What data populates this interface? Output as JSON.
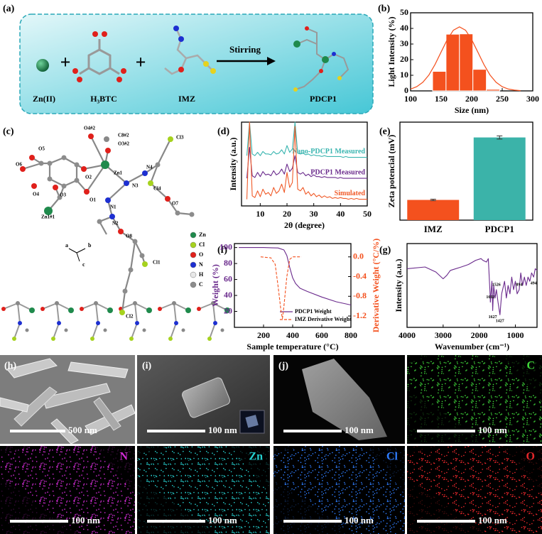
{
  "panel_labels": [
    "(a)",
    "(b)",
    "(c)",
    "(d)",
    "(e)",
    "(f)",
    "(g)",
    "(h)",
    "(i)",
    "(j)"
  ],
  "scheme": {
    "reactants": [
      "Zn(II)",
      "H₃BTC",
      "IMZ"
    ],
    "plus": [
      "+",
      "+"
    ],
    "arrow_label": "Stirring",
    "product": "PDCP1"
  },
  "structure": {
    "atom_labels": [
      "O5",
      "O6",
      "O4",
      "O3",
      "Zn1#1",
      "O2",
      "O1",
      "Zn1",
      "N1",
      "N2",
      "N3",
      "N4",
      "O4#2",
      "C8#2",
      "O3#2",
      "Cl3",
      "Cl4",
      "O7",
      "O8",
      "Cl1",
      "Cl2"
    ],
    "axes": [
      "a",
      "b",
      "c"
    ],
    "legend": [
      {
        "name": "Zn",
        "color": "#1f8a4c"
      },
      {
        "name": "Cl",
        "color": "#a6d21e"
      },
      {
        "name": "O",
        "color": "#e0201b"
      },
      {
        "name": "N",
        "color": "#1d2fd1"
      },
      {
        "name": "H",
        "color": "#e8e8e8"
      },
      {
        "name": "C",
        "color": "#8c8c8c"
      }
    ]
  },
  "micrographs": {
    "scale_bars": [
      "500 nm",
      "100 nm",
      "100 nm",
      "100 nm",
      "100 nm",
      "100 nm",
      "100 nm",
      "100 nm"
    ],
    "element_maps": [
      {
        "name": "C",
        "color": "#3fd83a"
      },
      {
        "name": "N",
        "color": "#d22bd6"
      },
      {
        "name": "Zn",
        "color": "#25d0d0"
      },
      {
        "name": "Cl",
        "color": "#2f7dff"
      },
      {
        "name": "O",
        "color": "#e3262a"
      }
    ]
  },
  "chart_data": [
    {
      "type": "histogram",
      "xlabel": "Size (nm)",
      "ylabel": "Light Intensity (%)",
      "bins": [
        136,
        158,
        180,
        202,
        224,
        246
      ],
      "values": [
        12.5,
        36.3,
        36.5,
        13.8,
        1.0
      ],
      "color": "#f4511e",
      "fit": {
        "x": [
          100,
          110,
          120,
          130,
          140,
          150,
          160,
          170,
          180,
          190,
          200,
          210,
          220,
          230,
          240,
          250,
          260,
          270,
          280
        ],
        "values": [
          1.2,
          2.7,
          5.5,
          10.2,
          16.9,
          24.9,
          32.8,
          38.8,
          41,
          38.8,
          32.8,
          24.9,
          16.9,
          10.2,
          5.5,
          2.7,
          1.2,
          0.5,
          0.2
        ],
        "color": "#f4511e"
      },
      "xlim": [
        100,
        300
      ],
      "xticks": [
        100,
        150,
        200,
        250,
        300
      ],
      "ylim": [
        0,
        50
      ],
      "yticks": [
        0,
        10,
        20,
        30,
        40,
        50
      ]
    },
    {
      "type": "line",
      "xlabel": "2θ (degree)",
      "ylabel": "Intensity (a.u.)",
      "legend": "right",
      "x": [
        5,
        6,
        7,
        8,
        9,
        10,
        11,
        12,
        13,
        14,
        15,
        16,
        17,
        18,
        19,
        20,
        21,
        22,
        23,
        24,
        25,
        26,
        27,
        28,
        29,
        30,
        31,
        32,
        33,
        34,
        35,
        36,
        37,
        38,
        39,
        40,
        41,
        42,
        43,
        44,
        45,
        46,
        47,
        48,
        49,
        50
      ],
      "series": [
        {
          "name": "Nano-PDCP1 Measured",
          "color": "#3ab5b0",
          "values": [
            60,
            100,
            62,
            60,
            64,
            60,
            65,
            62,
            62,
            61,
            65,
            62,
            63,
            67,
            62,
            72,
            64,
            68,
            100,
            63,
            62,
            63,
            61,
            62,
            60,
            61,
            60,
            60,
            59,
            60,
            59,
            59,
            59,
            59,
            59,
            59,
            58,
            59,
            58,
            58,
            58,
            58,
            58,
            58,
            58,
            58
          ]
        },
        {
          "name": "PDCP1 Measured",
          "color": "#6a2a8c",
          "values": [
            33,
            70,
            36,
            34,
            40,
            35,
            41,
            37,
            38,
            36,
            42,
            37,
            39,
            44,
            38,
            50,
            41,
            45,
            60,
            40,
            38,
            40,
            36,
            38,
            35,
            37,
            35,
            35,
            34,
            35,
            34,
            34,
            34,
            34,
            33,
            34,
            33,
            33,
            33,
            33,
            33,
            33,
            33,
            33,
            33,
            33
          ]
        },
        {
          "name": "Simulated",
          "color": "#f05a28",
          "values": [
            8,
            100,
            12,
            10,
            18,
            11,
            20,
            14,
            16,
            12,
            22,
            15,
            18,
            26,
            16,
            40,
            22,
            28,
            95,
            20,
            18,
            22,
            14,
            17,
            12,
            15,
            11,
            13,
            10,
            12,
            10,
            11,
            9,
            10,
            9,
            10,
            9,
            9,
            8,
            9,
            8,
            9,
            8,
            8,
            8,
            8
          ]
        }
      ],
      "xlim": [
        3,
        50
      ],
      "xticks": [
        10,
        20,
        30,
        40,
        50
      ],
      "ylim": [
        0,
        100
      ]
    },
    {
      "type": "bar",
      "ylabel": "Zeta potencial (mV)",
      "categories": [
        "IMZ",
        "PDCP1"
      ],
      "values": [
        1.65,
        6.75
      ],
      "errors": [
        0.06,
        0.13
      ],
      "colors": [
        "#f4511e",
        "#3bb3a9"
      ],
      "ylim": [
        0,
        8
      ]
    },
    {
      "type": "line",
      "xlabel": "Sample temperature (°C)",
      "ylabel": "Weight (%)",
      "y2label": "Derivative Weight (°C/%)",
      "legend": "lower right",
      "series": [
        {
          "name": "PDCP1 Weight",
          "color": "#6a2a8c",
          "x": [
            30,
            100,
            200,
            300,
            340,
            360,
            380,
            400,
            420,
            450,
            500,
            600,
            700,
            800
          ],
          "values": [
            100,
            100,
            100,
            99.5,
            97,
            90,
            75,
            62,
            55,
            49,
            45,
            38,
            32,
            28
          ]
        },
        {
          "name": "IMZ Derivative Weight",
          "color": "#f4511e",
          "axis": "y2",
          "linestyle": "dashed",
          "x": [
            180,
            250,
            280,
            300,
            320,
            330,
            340,
            360,
            380,
            400,
            420,
            460
          ],
          "values": [
            0,
            -0.02,
            -0.15,
            -0.6,
            -1.1,
            -1.25,
            -1.0,
            -0.4,
            -0.05,
            0,
            0,
            0
          ]
        }
      ],
      "xlim": [
        0,
        800
      ],
      "xticks": [
        200,
        400,
        600,
        800
      ],
      "ylim": [
        0,
        105
      ],
      "yticks": [
        20,
        40,
        60,
        80,
        100
      ],
      "y2lim": [
        -1.43,
        0.27
      ],
      "y2ticks": [
        {
          "value": 0,
          "label": "0.0"
        },
        -0.4,
        -0.8,
        -1.2
      ]
    },
    {
      "type": "line",
      "xlabel": "Wavenumber (cm⁻¹)",
      "ylabel": "Intensity (a.u.)",
      "color": "#6a2a8c",
      "x": [
        4000,
        3500,
        3200,
        3000,
        2900,
        2800,
        2500,
        2300,
        2100,
        1950,
        1900,
        1800,
        1750,
        1700,
        1692,
        1650,
        1627,
        1600,
        1560,
        1526,
        1480,
        1427,
        1380,
        1300,
        1250,
        1200,
        1150,
        1100,
        1050,
        1000,
        950,
        894,
        850,
        800,
        750,
        700,
        650,
        600,
        550,
        494,
        450,
        400
      ],
      "values": [
        70,
        72,
        66,
        58,
        62,
        68,
        72,
        75,
        80,
        82,
        80,
        78,
        82,
        40,
        30,
        55,
        20,
        50,
        35,
        45,
        30,
        15,
        40,
        55,
        35,
        50,
        40,
        60,
        45,
        55,
        40,
        45,
        65,
        50,
        60,
        50,
        60,
        55,
        65,
        60,
        70,
        68
      ],
      "peak_labels": [
        1692,
        1627,
        1526,
        1427,
        894,
        494
      ],
      "xlim": [
        4000,
        400
      ],
      "xticks": [
        4000,
        3000,
        2000,
        1000
      ],
      "ylim": [
        0,
        100
      ]
    }
  ]
}
